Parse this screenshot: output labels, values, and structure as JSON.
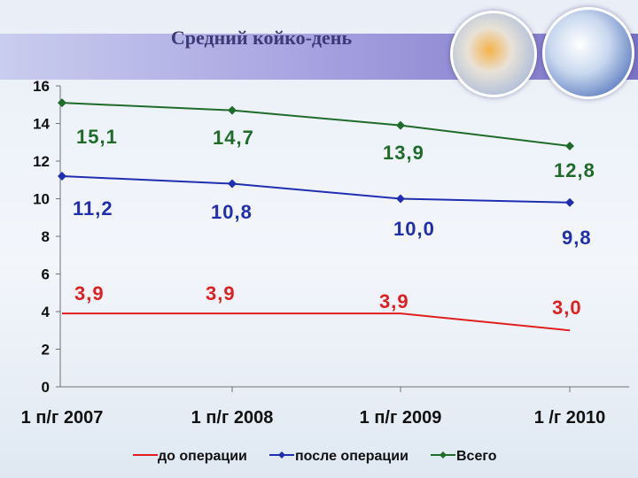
{
  "chart_data": {
    "type": "line",
    "title": "Средний койко-день",
    "categories": [
      "1 п/г 2007",
      "1 п/г 2008",
      "1 п/г 2009",
      "1 /г 2010"
    ],
    "ylim": [
      0,
      16
    ],
    "yticks": [
      "0",
      "2",
      "4",
      "6",
      "8",
      "10",
      "12",
      "14",
      "16"
    ],
    "grid": false,
    "legend_position": "bottom",
    "series": [
      {
        "name": "до операции",
        "values": [
          3.9,
          3.9,
          3.9,
          3.0
        ],
        "labels": [
          "3,9",
          "3,9",
          "3,9",
          "3,0"
        ],
        "color": "#e02020",
        "marker": "none"
      },
      {
        "name": "после операции",
        "values": [
          11.2,
          10.8,
          10.0,
          9.8
        ],
        "labels": [
          "11,2",
          "10,8",
          "10,0",
          "9,8"
        ],
        "color": "#1f2fb0",
        "marker": "diamond"
      },
      {
        "name": "Всего",
        "values": [
          15.1,
          14.7,
          13.9,
          12.8
        ],
        "labels": [
          "15,1",
          "14,7",
          "13,9",
          "12,8"
        ],
        "color": "#1f6b2a",
        "marker": "diamond"
      }
    ]
  }
}
